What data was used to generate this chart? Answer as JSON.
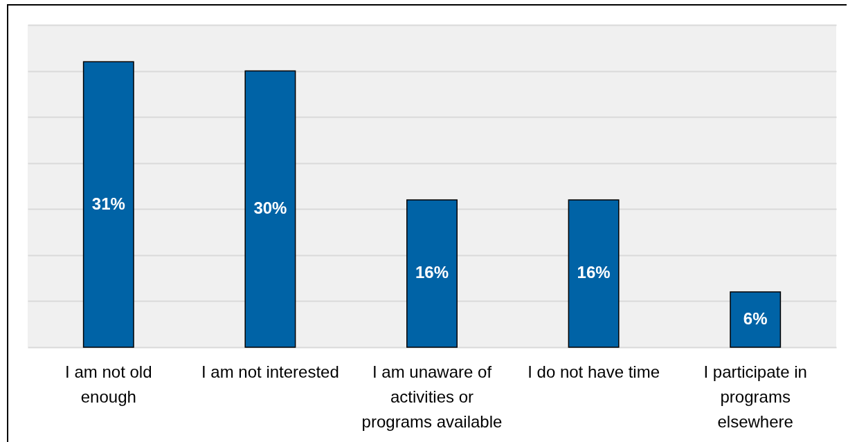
{
  "chart_data": {
    "type": "bar",
    "categories": [
      "I am not old enough",
      "I am not interested",
      "I am unaware of activities or programs available",
      "I do not have time",
      "I participate in programs elsewhere"
    ],
    "series": [
      {
        "color": "#0063a6",
        "values": [
          31,
          30,
          16,
          16,
          6
        ],
        "value_labels": [
          "31%",
          "30%",
          "16%",
          "16%",
          "6%"
        ]
      }
    ],
    "ylim": [
      0,
      35
    ],
    "yticks": [
      0,
      5,
      10,
      15,
      20,
      25,
      30,
      35
    ],
    "grid": "y",
    "tick_labels": "x"
  }
}
